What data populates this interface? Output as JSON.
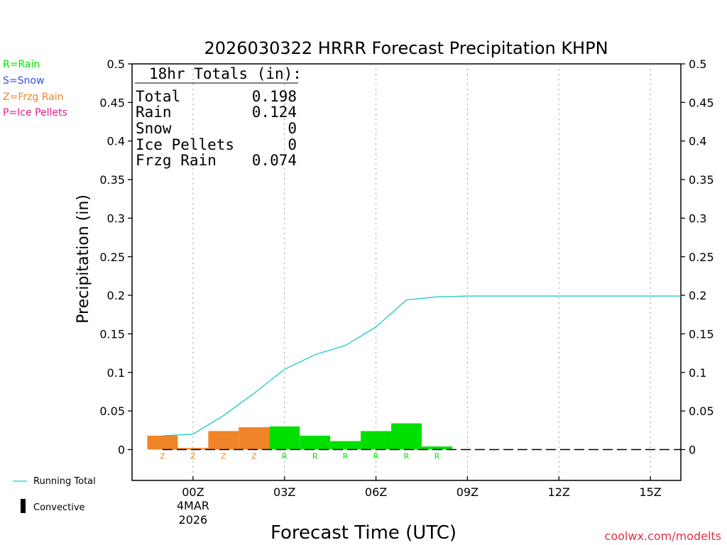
{
  "chart_data": {
    "type": "bar",
    "title": "2026030322 HRRR Forecast Precipitation KHPN",
    "ylabel": "Precipitation (in)",
    "xlabel": "Forecast Time (UTC)",
    "ylim": [
      -0.04,
      0.5
    ],
    "xlim": [
      -1.0,
      17.0
    ],
    "y_ticks": [
      0,
      0.05,
      0.1,
      0.15,
      0.2,
      0.25,
      0.3,
      0.35,
      0.4,
      0.45,
      0.5
    ],
    "y_tick_labels": [
      "0",
      "0.05",
      "0.1",
      "0.15",
      "0.2",
      "0.25",
      "0.3",
      "0.35",
      "0.4",
      "0.45",
      "0.5"
    ],
    "x_ticks": [
      {
        "hour": 1,
        "label": "00Z",
        "date": "4MAR",
        "year": "2026"
      },
      {
        "hour": 4,
        "label": "03Z"
      },
      {
        "hour": 7,
        "label": "06Z"
      },
      {
        "hour": 10,
        "label": "09Z"
      },
      {
        "hour": 13,
        "label": "12Z"
      },
      {
        "hour": 16,
        "label": "15Z"
      }
    ],
    "bars": [
      {
        "hour": 0,
        "value": 0.018,
        "type": "Z"
      },
      {
        "hour": 1,
        "value": 0.002,
        "type": "Z"
      },
      {
        "hour": 2,
        "value": 0.024,
        "type": "Z"
      },
      {
        "hour": 3,
        "value": 0.029,
        "type": "Z"
      },
      {
        "hour": 4,
        "value": 0.03,
        "type": "R"
      },
      {
        "hour": 5,
        "value": 0.018,
        "type": "R"
      },
      {
        "hour": 6,
        "value": 0.011,
        "type": "R"
      },
      {
        "hour": 7,
        "value": 0.024,
        "type": "R"
      },
      {
        "hour": 8,
        "value": 0.034,
        "type": "R"
      },
      {
        "hour": 9,
        "value": 0.004,
        "type": "R"
      }
    ],
    "running_total": {
      "name": "Running Total",
      "x": [
        0,
        1,
        2,
        3,
        4,
        5,
        6,
        7,
        8,
        9,
        10,
        11,
        12,
        13,
        14,
        15,
        16,
        17
      ],
      "y": [
        0.018,
        0.02,
        0.044,
        0.073,
        0.104,
        0.123,
        0.135,
        0.159,
        0.194,
        0.198,
        0.199,
        0.199,
        0.199,
        0.199,
        0.199,
        0.199,
        0.199,
        0.199
      ]
    },
    "convective": {
      "x_start": 0,
      "x_end": 17,
      "value": 0
    }
  },
  "totals_box": {
    "heading": "18hr Totals (in):",
    "rows": [
      {
        "label": "Total",
        "value": "0.198"
      },
      {
        "label": "Rain",
        "value": "0.124"
      },
      {
        "label": "Snow",
        "value": "0"
      },
      {
        "label": "Ice Pellets",
        "value": "0"
      },
      {
        "label": "Frzg Rain",
        "value": "0.074"
      }
    ]
  },
  "legend": {
    "types": [
      {
        "code": "R",
        "text": "R=Rain",
        "color": "#00e000"
      },
      {
        "code": "S",
        "text": "S=Snow",
        "color": "#3050e0"
      },
      {
        "code": "Z",
        "text": "Z=Frzg Rain",
        "color": "#f08428"
      },
      {
        "code": "P",
        "text": "P=Ice Pellets",
        "color": "#e0208c"
      }
    ],
    "running_total_label": "Running Total",
    "convective_label": "Convective"
  },
  "colors": {
    "rain": "#00e000",
    "frzg_rain": "#f08428",
    "running_total": "#20c8c8",
    "grid": "#999999"
  },
  "credit": "coolwx.com/modelts"
}
